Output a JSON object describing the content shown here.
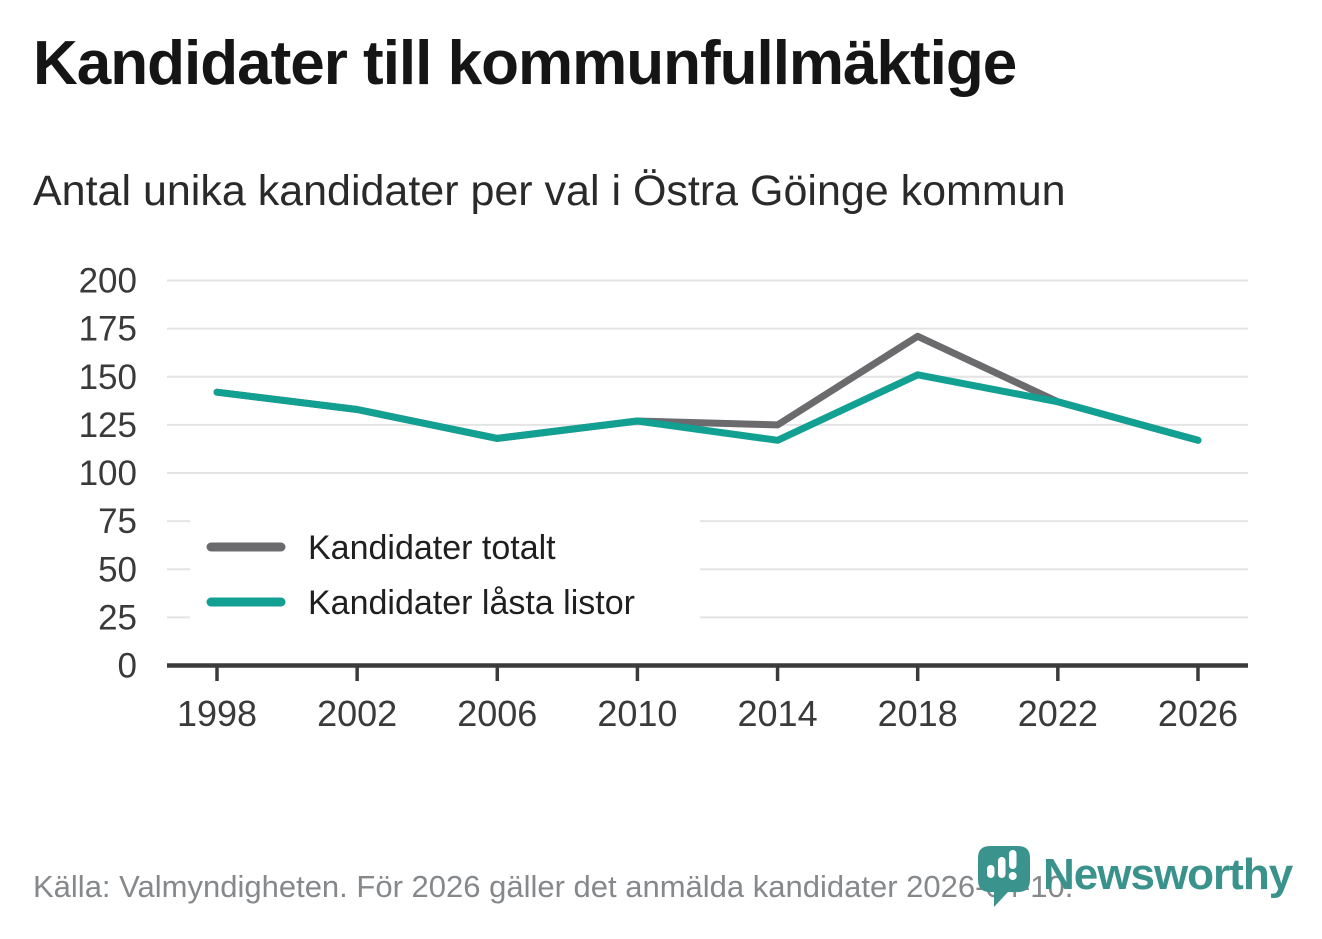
{
  "chart_data": {
    "type": "line",
    "title": "Kandidater till kommunfullmäktige",
    "subtitle": "Antal unika kandidater per val i Östra Göinge kommun",
    "x": [
      1998,
      2002,
      2006,
      2010,
      2014,
      2018,
      2022,
      2026
    ],
    "series": [
      {
        "id": "kandidater-totalt",
        "name": "Kandidater totalt",
        "color": "#6b6b6e",
        "values": [
          142,
          133,
          118,
          127,
          125,
          171,
          137,
          117
        ]
      },
      {
        "id": "kandidater-lasta-listor",
        "name": "Kandidater låsta listor",
        "color": "#12a093",
        "values": [
          142,
          133,
          118,
          127,
          117,
          151,
          137,
          117
        ]
      }
    ],
    "ylim": [
      0,
      200
    ],
    "yticks": [
      0,
      25,
      50,
      75,
      100,
      125,
      150,
      175,
      200
    ],
    "grid": "horizontal",
    "legend_position": "inside-bottom-left",
    "source_note": "Källa: Valmyndigheten. För 2026 gäller det anmälda kandidater 2026-04-10."
  },
  "branding": {
    "logo_text": "Newsworthy",
    "logo_icon": "map-pin-bar-chart-icon"
  },
  "colors": {
    "accent_teal": "#12a093",
    "series_gray": "#6b6b6e",
    "logo_teal": "#3a938c",
    "grid": "#e4e4e4",
    "axis": "#3b3b3b",
    "tick_label": "#3a3a3a",
    "legend_label": "#1f1f1f",
    "title": "#151515",
    "subtitle": "#2a2a2a",
    "source": "#85898c"
  }
}
